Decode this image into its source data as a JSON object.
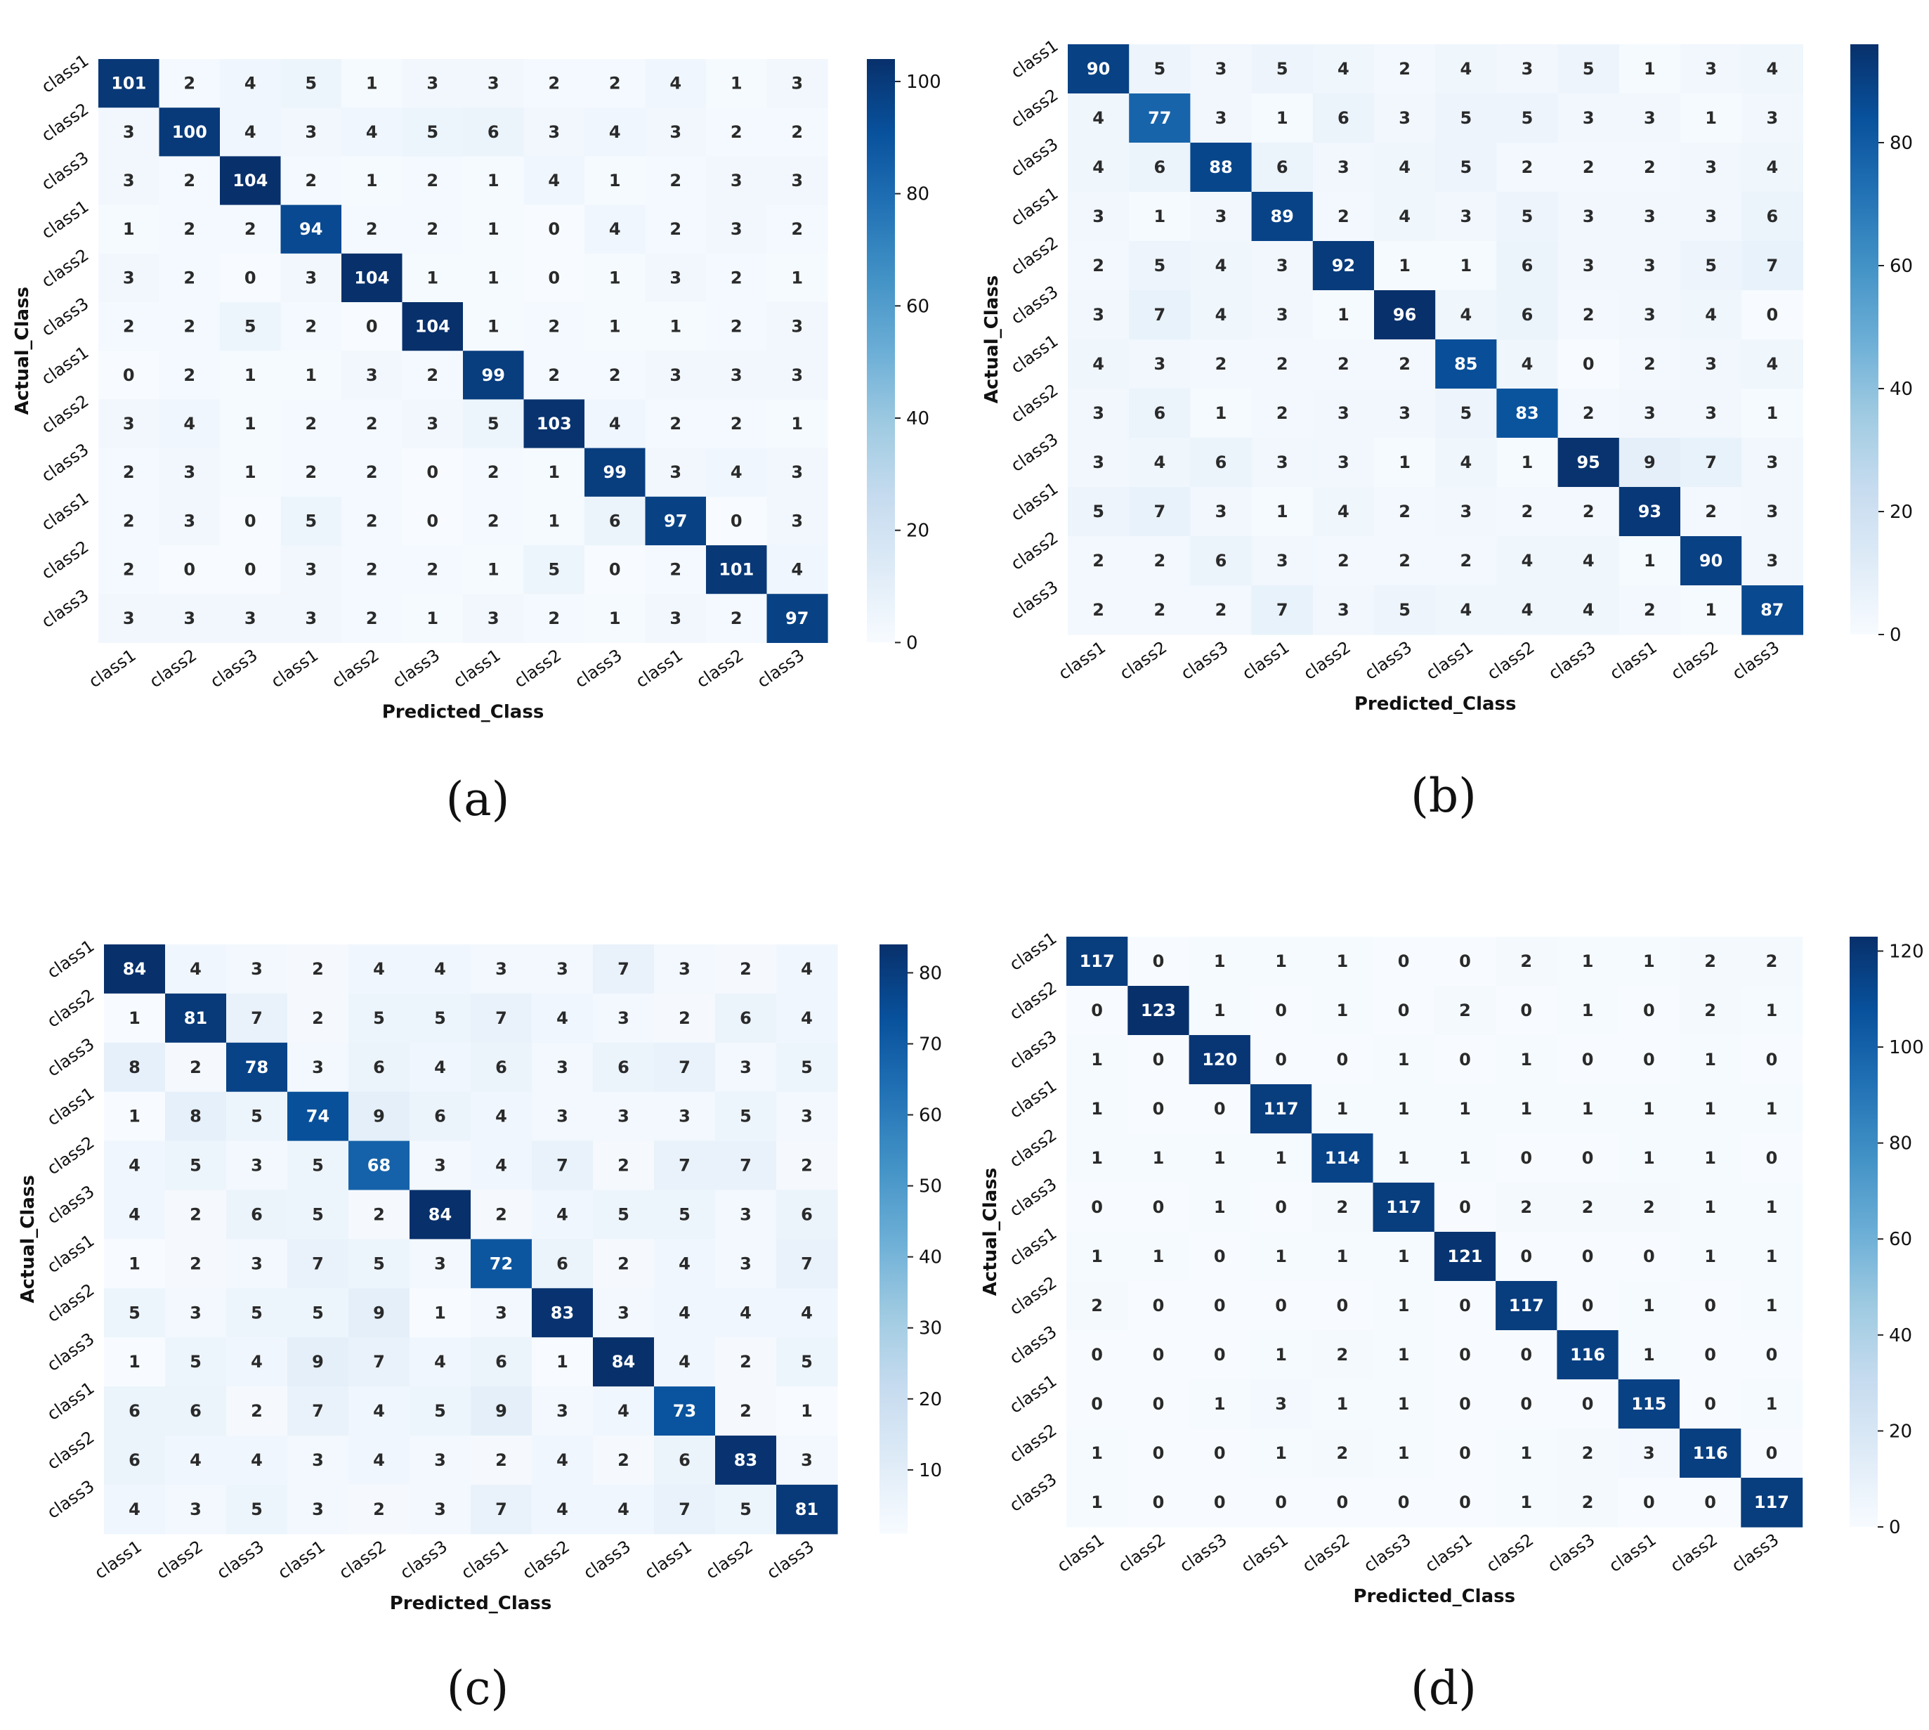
{
  "chart_data": [
    {
      "type": "heatmap",
      "panel_label": "(a)",
      "xlabel": "Predicted_Class",
      "ylabel": "Actual_Class",
      "x_ticks": [
        "class1",
        "class2",
        "class3",
        "class1",
        "class2",
        "class3",
        "class1",
        "class2",
        "class3",
        "class1",
        "class2",
        "class3"
      ],
      "y_ticks": [
        "class1",
        "class2",
        "class3",
        "class1",
        "class2",
        "class3",
        "class1",
        "class2",
        "class3",
        "class1",
        "class2",
        "class3"
      ],
      "colorbar_range": [
        0,
        104
      ],
      "colorbar_ticks": [
        0,
        20,
        40,
        60,
        80,
        100
      ],
      "matrix": [
        [
          101,
          2,
          4,
          5,
          1,
          3,
          3,
          2,
          2,
          4,
          1,
          3
        ],
        [
          3,
          100,
          4,
          3,
          4,
          5,
          6,
          3,
          4,
          3,
          2,
          2
        ],
        [
          3,
          2,
          104,
          2,
          1,
          2,
          1,
          4,
          1,
          2,
          3,
          3
        ],
        [
          1,
          2,
          2,
          94,
          2,
          2,
          1,
          0,
          4,
          2,
          3,
          2
        ],
        [
          3,
          2,
          0,
          3,
          104,
          1,
          1,
          0,
          1,
          3,
          2,
          1
        ],
        [
          2,
          2,
          5,
          2,
          0,
          104,
          1,
          2,
          1,
          1,
          2,
          3
        ],
        [
          0,
          2,
          1,
          1,
          3,
          2,
          99,
          2,
          2,
          3,
          3,
          3
        ],
        [
          3,
          4,
          1,
          2,
          2,
          3,
          5,
          103,
          4,
          2,
          2,
          1
        ],
        [
          2,
          3,
          1,
          2,
          2,
          0,
          2,
          1,
          99,
          3,
          4,
          3
        ],
        [
          2,
          3,
          0,
          5,
          2,
          0,
          2,
          1,
          6,
          97,
          0,
          3
        ],
        [
          2,
          0,
          0,
          3,
          2,
          2,
          1,
          5,
          0,
          2,
          101,
          4
        ],
        [
          3,
          3,
          3,
          3,
          2,
          1,
          3,
          2,
          1,
          3,
          2,
          97
        ]
      ]
    },
    {
      "type": "heatmap",
      "panel_label": "(b)",
      "xlabel": "Predicted_Class",
      "ylabel": "Actual_Class",
      "x_ticks": [
        "class1",
        "class2",
        "class3",
        "class1",
        "class2",
        "class3",
        "class1",
        "class2",
        "class3",
        "class1",
        "class2",
        "class3"
      ],
      "y_ticks": [
        "class1",
        "class2",
        "class3",
        "class1",
        "class2",
        "class3",
        "class1",
        "class2",
        "class3",
        "class1",
        "class2",
        "class3"
      ],
      "colorbar_range": [
        0,
        96
      ],
      "colorbar_ticks": [
        0,
        20,
        40,
        60,
        80
      ],
      "matrix": [
        [
          90,
          5,
          3,
          5,
          4,
          2,
          4,
          3,
          5,
          1,
          3,
          4
        ],
        [
          4,
          77,
          3,
          1,
          6,
          3,
          5,
          5,
          3,
          3,
          1,
          3
        ],
        [
          4,
          6,
          88,
          6,
          3,
          4,
          5,
          2,
          2,
          2,
          3,
          4
        ],
        [
          3,
          1,
          3,
          89,
          2,
          4,
          3,
          5,
          3,
          3,
          3,
          6
        ],
        [
          2,
          5,
          4,
          3,
          92,
          1,
          1,
          6,
          3,
          3,
          5,
          7
        ],
        [
          3,
          7,
          4,
          3,
          1,
          96,
          4,
          6,
          2,
          3,
          4,
          0
        ],
        [
          4,
          3,
          2,
          2,
          2,
          2,
          85,
          4,
          0,
          2,
          3,
          4
        ],
        [
          3,
          6,
          1,
          2,
          3,
          3,
          5,
          83,
          2,
          3,
          3,
          1
        ],
        [
          3,
          4,
          6,
          3,
          3,
          1,
          4,
          1,
          95,
          9,
          7,
          3
        ],
        [
          5,
          7,
          3,
          1,
          4,
          2,
          3,
          2,
          2,
          93,
          2,
          3
        ],
        [
          2,
          2,
          6,
          3,
          2,
          2,
          2,
          4,
          4,
          1,
          90,
          3
        ],
        [
          2,
          2,
          2,
          7,
          3,
          5,
          4,
          4,
          4,
          2,
          1,
          87
        ]
      ]
    },
    {
      "type": "heatmap",
      "panel_label": "(c)",
      "xlabel": "Predicted_Class",
      "ylabel": "Actual_Class",
      "x_ticks": [
        "class1",
        "class2",
        "class3",
        "class1",
        "class2",
        "class3",
        "class1",
        "class2",
        "class3",
        "class1",
        "class2",
        "class3"
      ],
      "y_ticks": [
        "class1",
        "class2",
        "class3",
        "class1",
        "class2",
        "class3",
        "class1",
        "class2",
        "class3",
        "class1",
        "class2",
        "class3"
      ],
      "colorbar_range": [
        1,
        84
      ],
      "colorbar_ticks": [
        10,
        20,
        30,
        40,
        50,
        60,
        70,
        80
      ],
      "matrix": [
        [
          84,
          4,
          3,
          2,
          4,
          4,
          3,
          3,
          7,
          3,
          2,
          4
        ],
        [
          1,
          81,
          7,
          2,
          5,
          5,
          7,
          4,
          3,
          2,
          6,
          4
        ],
        [
          8,
          2,
          78,
          3,
          6,
          4,
          6,
          3,
          6,
          7,
          3,
          5
        ],
        [
          1,
          8,
          5,
          74,
          9,
          6,
          4,
          3,
          3,
          3,
          5,
          3
        ],
        [
          4,
          5,
          3,
          5,
          68,
          3,
          4,
          7,
          2,
          7,
          7,
          2
        ],
        [
          4,
          2,
          6,
          5,
          2,
          84,
          2,
          4,
          5,
          5,
          3,
          6
        ],
        [
          1,
          2,
          3,
          7,
          5,
          3,
          72,
          6,
          2,
          4,
          3,
          7
        ],
        [
          5,
          3,
          5,
          5,
          9,
          1,
          3,
          83,
          3,
          4,
          4,
          4
        ],
        [
          1,
          5,
          4,
          9,
          7,
          4,
          6,
          1,
          84,
          4,
          2,
          5
        ],
        [
          6,
          6,
          2,
          7,
          4,
          5,
          9,
          3,
          4,
          73,
          2,
          1
        ],
        [
          6,
          4,
          4,
          3,
          4,
          3,
          2,
          4,
          2,
          6,
          83,
          3
        ],
        [
          4,
          3,
          5,
          3,
          2,
          3,
          7,
          4,
          4,
          7,
          5,
          81
        ]
      ]
    },
    {
      "type": "heatmap",
      "panel_label": "(d)",
      "xlabel": "Predicted_Class",
      "ylabel": "Actual_Class",
      "x_ticks": [
        "class1",
        "class2",
        "class3",
        "class1",
        "class2",
        "class3",
        "class1",
        "class2",
        "class3",
        "class1",
        "class2",
        "class3"
      ],
      "y_ticks": [
        "class1",
        "class2",
        "class3",
        "class1",
        "class2",
        "class3",
        "class1",
        "class2",
        "class3",
        "class1",
        "class2",
        "class3"
      ],
      "colorbar_range": [
        0,
        123
      ],
      "colorbar_ticks": [
        0,
        20,
        40,
        60,
        80,
        100,
        120
      ],
      "matrix": [
        [
          117,
          0,
          1,
          1,
          1,
          0,
          0,
          2,
          1,
          1,
          2,
          2
        ],
        [
          0,
          123,
          1,
          0,
          1,
          0,
          2,
          0,
          1,
          0,
          2,
          1
        ],
        [
          1,
          0,
          120,
          0,
          0,
          1,
          0,
          1,
          0,
          0,
          1,
          0
        ],
        [
          1,
          0,
          0,
          117,
          1,
          1,
          1,
          1,
          1,
          1,
          1,
          1
        ],
        [
          1,
          1,
          1,
          1,
          114,
          1,
          1,
          0,
          0,
          1,
          1,
          0
        ],
        [
          0,
          0,
          1,
          0,
          2,
          117,
          0,
          2,
          2,
          2,
          1,
          1
        ],
        [
          1,
          1,
          0,
          1,
          1,
          1,
          121,
          0,
          0,
          0,
          1,
          1
        ],
        [
          2,
          0,
          0,
          0,
          0,
          1,
          0,
          117,
          0,
          1,
          0,
          1
        ],
        [
          0,
          0,
          0,
          1,
          2,
          1,
          0,
          0,
          116,
          1,
          0,
          0
        ],
        [
          0,
          0,
          1,
          3,
          1,
          1,
          0,
          0,
          0,
          115,
          0,
          1
        ],
        [
          1,
          0,
          0,
          1,
          2,
          1,
          0,
          1,
          2,
          3,
          116,
          0
        ],
        [
          1,
          0,
          0,
          0,
          0,
          0,
          0,
          1,
          2,
          0,
          0,
          117
        ]
      ]
    }
  ]
}
